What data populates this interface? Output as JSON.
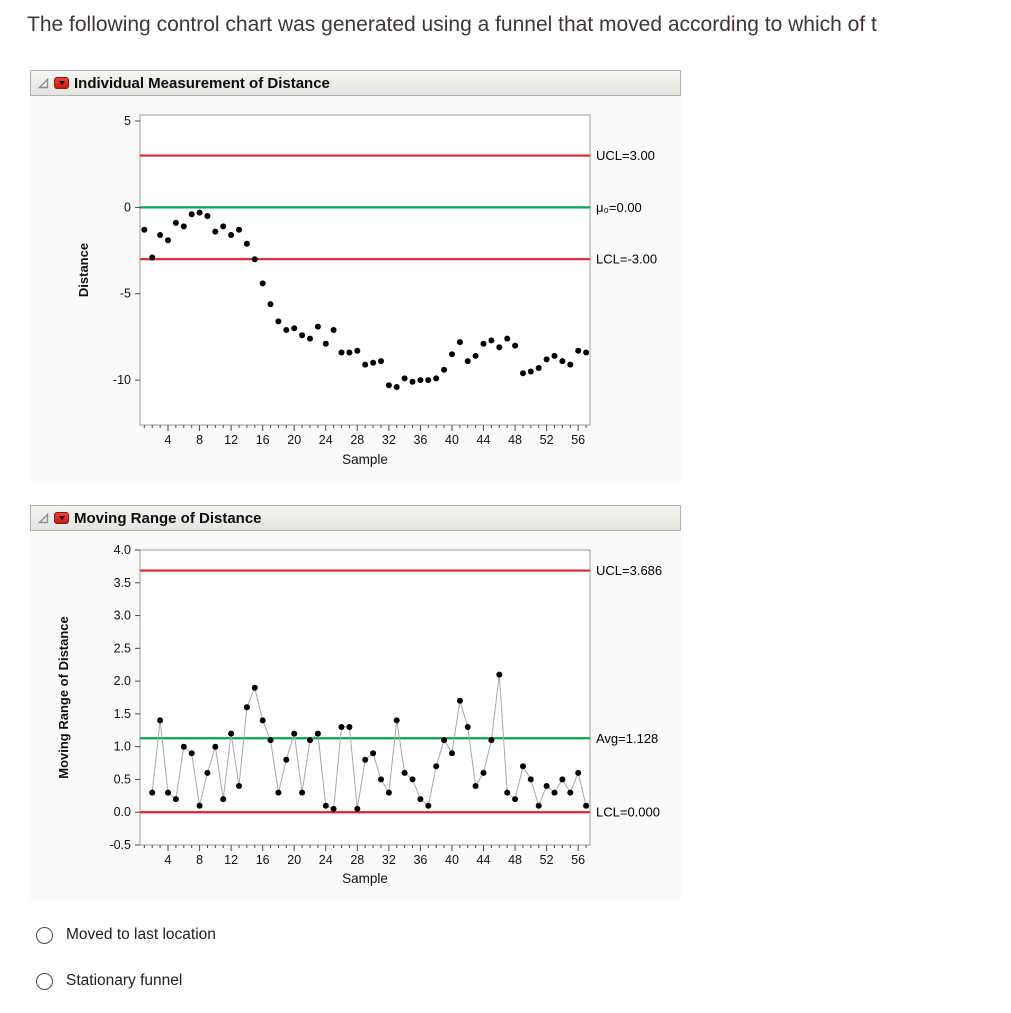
{
  "question": {
    "text": "The following control chart was generated using a funnel that moved according to which of t"
  },
  "panels": [
    {
      "title": "Individual Measurement of Distance"
    },
    {
      "title": "Moving Range of Distance"
    }
  ],
  "options": [
    {
      "label": "Moved to last location"
    },
    {
      "label": "Stationary funnel"
    }
  ],
  "colors": {
    "limit_line": "#e02330",
    "center_line": "#00a650",
    "points": "#000000",
    "connector": "#a8a8a8"
  },
  "chart_data": [
    {
      "type": "scatter",
      "title": "Individual Measurement of Distance",
      "xlabel": "Sample",
      "ylabel": "Distance",
      "xlim": [
        0.45,
        57.5
      ],
      "ylim": [
        -12.6,
        5.35
      ],
      "x_ticks": [
        4,
        8,
        12,
        16,
        20,
        24,
        28,
        32,
        36,
        40,
        44,
        48,
        52,
        56
      ],
      "y_ticks": [
        {
          "v": 5,
          "label": "5"
        },
        {
          "v": 0,
          "label": "0"
        },
        {
          "v": -5,
          "label": "-5"
        },
        {
          "v": -10,
          "label": "-10"
        }
      ],
      "connect": false,
      "grid": false,
      "legend": "none",
      "control_lines": [
        {
          "label": "UCL=3.00",
          "value": 3.0,
          "color": "#e02330"
        },
        {
          "label": "μ₀=0.00",
          "value": 0.0,
          "color": "#00a650"
        },
        {
          "label": "LCL=-3.00",
          "value": -3.0,
          "color": "#e02330"
        }
      ],
      "x_start": 1,
      "values": [
        -1.3,
        -2.9,
        -1.6,
        -1.9,
        -0.9,
        -1.1,
        -0.4,
        -0.3,
        -0.5,
        -1.4,
        -1.1,
        -1.6,
        -1.3,
        -2.1,
        -3.0,
        -4.4,
        -5.6,
        -6.6,
        -7.1,
        -7.0,
        -7.4,
        -7.6,
        -6.9,
        -7.9,
        -7.1,
        -8.4,
        -8.4,
        -8.3,
        -9.1,
        -9.0,
        -8.9,
        -10.3,
        -10.4,
        -9.9,
        -10.1,
        -10.0,
        -10.0,
        -9.9,
        -9.4,
        -8.5,
        -7.8,
        -8.9,
        -8.6,
        -7.9,
        -7.7,
        -8.1,
        -7.6,
        -8.0,
        -9.6,
        -9.5,
        -9.3,
        -8.8,
        -8.6,
        -8.9,
        -9.1,
        -8.3,
        -8.4
      ]
    },
    {
      "type": "line",
      "title": "Moving Range of Distance",
      "xlabel": "Sample",
      "ylabel": "Moving Range of Distance",
      "xlim": [
        0.45,
        57.5
      ],
      "ylim": [
        -0.5,
        4.0
      ],
      "x_ticks": [
        4,
        8,
        12,
        16,
        20,
        24,
        28,
        32,
        36,
        40,
        44,
        48,
        52,
        56
      ],
      "y_ticks": [
        {
          "v": 4.0,
          "label": "4.0"
        },
        {
          "v": 3.5,
          "label": "3.5"
        },
        {
          "v": 3.0,
          "label": "3.0"
        },
        {
          "v": 2.5,
          "label": "2.5"
        },
        {
          "v": 2.0,
          "label": "2.0"
        },
        {
          "v": 1.5,
          "label": "1.5"
        },
        {
          "v": 1.0,
          "label": "1.0"
        },
        {
          "v": 0.5,
          "label": "0.5"
        },
        {
          "v": 0.0,
          "label": "0.0"
        },
        {
          "v": -0.5,
          "label": "-0.5"
        }
      ],
      "connect": true,
      "grid": false,
      "legend": "none",
      "control_lines": [
        {
          "label": "UCL=3.686",
          "value": 3.686,
          "color": "#e02330"
        },
        {
          "label": "Avg=1.128",
          "value": 1.128,
          "color": "#00a650"
        },
        {
          "label": "LCL=0.000",
          "value": 0.0,
          "color": "#e02330"
        }
      ],
      "x_start": 2,
      "values": [
        0.3,
        1.4,
        0.3,
        0.2,
        1.0,
        0.9,
        0.1,
        0.6,
        1.0,
        0.2,
        1.2,
        0.4,
        1.6,
        1.9,
        1.4,
        1.1,
        0.3,
        0.8,
        1.2,
        0.3,
        1.1,
        1.2,
        0.1,
        0.05,
        1.3,
        1.3,
        0.05,
        0.8,
        0.9,
        0.5,
        0.3,
        1.4,
        0.6,
        0.5,
        0.2,
        0.1,
        0.7,
        1.1,
        0.9,
        1.7,
        1.3,
        0.4,
        0.6,
        1.1,
        2.1,
        0.3,
        0.2,
        0.7,
        0.5,
        0.1,
        0.4,
        0.3,
        0.5,
        0.3,
        0.6,
        0.1
      ]
    }
  ]
}
